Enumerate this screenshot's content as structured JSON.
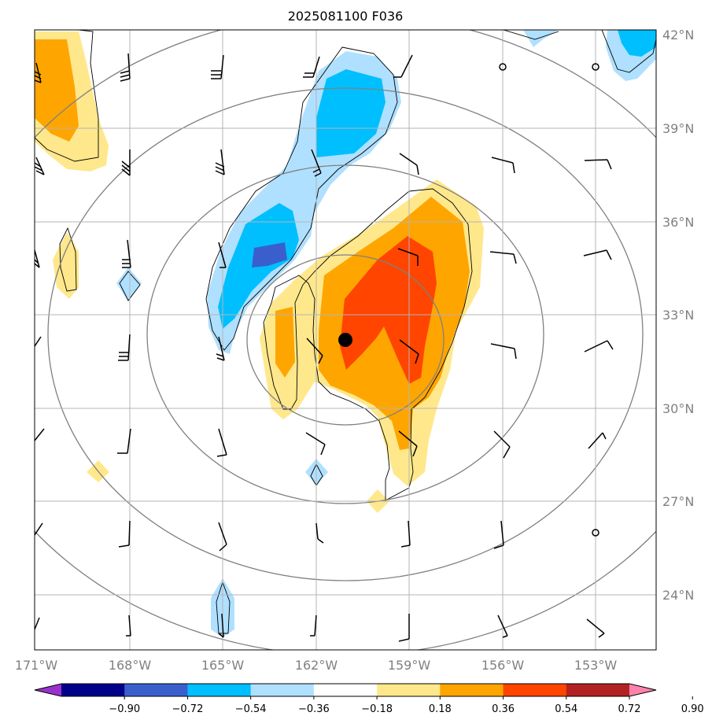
{
  "title": "2025081100 F036",
  "lon_labels": [
    "171°W",
    "168°W",
    "165°W",
    "162°W",
    "159°W",
    "156°W",
    "153°W"
  ],
  "lat_labels": [
    "42°N",
    "39°N",
    "36°N",
    "33°N",
    "30°N",
    "27°N",
    "24°N"
  ],
  "colorbar": {
    "ticks": [
      "−0.90",
      "−0.72",
      "−0.54",
      "−0.36",
      "−0.18",
      "0.18",
      "0.36",
      "0.54",
      "0.72",
      "0.90"
    ],
    "colors": [
      "#9932cc",
      "#00008b",
      "#3a5fcd",
      "#00bfff",
      "#b0e0ff",
      "#ffffff",
      "#ffe88c",
      "#ffa500",
      "#ff4500",
      "#b22222",
      "#ff82ab"
    ]
  },
  "storm_center": {
    "lon": -161.1,
    "lat": 32.2
  },
  "fill_colors": {
    "pos1": "#ffe88c",
    "pos2": "#ffa500",
    "pos3": "#ff4500",
    "neg1": "#b0e0ff",
    "neg2": "#00bfff",
    "neg3": "#3a5fcd"
  }
}
